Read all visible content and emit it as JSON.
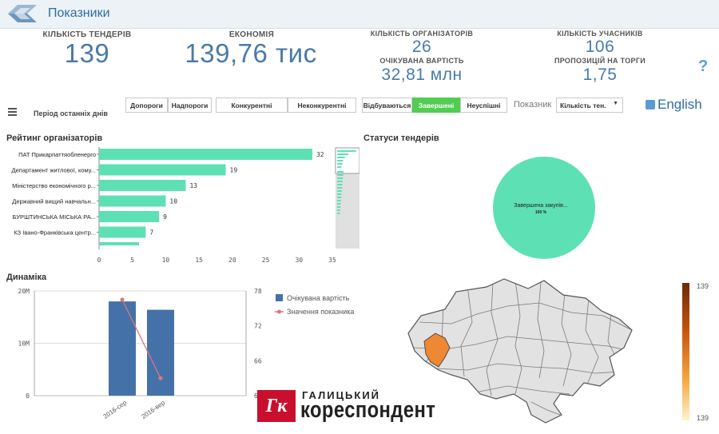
{
  "app": {
    "title": "Показники"
  },
  "kpis": {
    "tenders_count": {
      "label": "КІЛЬКІСТЬ ТЕНДЕРІВ",
      "value": "139"
    },
    "savings": {
      "label": "ЕКОНОМІЯ",
      "value": "139,76 тис"
    },
    "organizers_count": {
      "label": "КІЛЬКІСТЬ ОРГАНІЗАТОРІВ",
      "value": "26"
    },
    "expected_value": {
      "label": "ОЧІКУВАНА ВАРТІСТЬ",
      "value": "32,81 млн"
    },
    "participants_count": {
      "label": "КІЛЬКІСТЬ УЧАСНИКІВ",
      "value": "106"
    },
    "bids_per_tender": {
      "label": "ПРОПОЗИЦІЙ НА ТОРГИ",
      "value": "1,75"
    },
    "help": "?"
  },
  "filters": {
    "period_label": "Період останніх днів",
    "below_threshold": "Допороги",
    "above_threshold": "Надпороги",
    "competitive": "Конкурентні",
    "noncompetitive": "Неконкурентні",
    "in_progress": "Відбуваються",
    "completed": "Завершені",
    "unsuccessful": "Неуспішні",
    "indicator_label": "Показник",
    "indicator_value": "Кількість тен.",
    "language": "English"
  },
  "sections": {
    "organizers_rating": "Рейтинг організаторів",
    "tender_statuses": "Статуси тендерів",
    "dynamics": "Динаміка"
  },
  "chart_data": [
    {
      "type": "bar",
      "title": "Рейтинг організаторів",
      "orientation": "horizontal",
      "categories": [
        "ПАТ Прикарпаттяобленерго",
        "Департамент житлової, кому...",
        "Міністерство економічного р...",
        "Державний вищий навчальн...",
        "БУРШТИНСЬКА МІСЬКА РА...",
        "КЗ Івано-Франківська центр..."
      ],
      "values": [
        32,
        19,
        13,
        10,
        9,
        7
      ],
      "xlim": [
        0,
        35
      ],
      "xticks": [
        "0",
        "5",
        "10",
        "15",
        "20",
        "25",
        "30",
        "35"
      ],
      "color": "#5ee0b5"
    },
    {
      "type": "pie",
      "title": "Статуси тендерів",
      "slices": [
        {
          "label": "Завершена закупів...",
          "value": 100,
          "display": "100 %"
        }
      ],
      "color": "#5ee0b5"
    },
    {
      "type": "bar",
      "title": "Динаміка",
      "categories": [
        "2016-сер",
        "2016-вер"
      ],
      "series": [
        {
          "name": "Очікувана вартість",
          "type": "bar",
          "axis": "left",
          "values": [
            18000000,
            16400000
          ],
          "color": "#4472a8"
        },
        {
          "name": "Значення показника",
          "type": "line",
          "axis": "right",
          "values": [
            76.5,
            63
          ],
          "color": "#d9777f"
        }
      ],
      "ylim_left": [
        0,
        20000000
      ],
      "yticks_left": [
        "0",
        "10M",
        "20M"
      ],
      "ylim_right": [
        60,
        78
      ],
      "yticks_right": [
        "66",
        "72",
        "78"
      ]
    },
    {
      "type": "map",
      "legend_max": "139",
      "legend_min": "139",
      "highlight_region": "Івано-Франківська область",
      "highlight_color": "#ee8833",
      "base_color": "#e2e2e2"
    }
  ],
  "brand": {
    "mark": "Гк",
    "line1": "ГАЛИЦЬКИЙ",
    "line2": "кореспондент"
  }
}
